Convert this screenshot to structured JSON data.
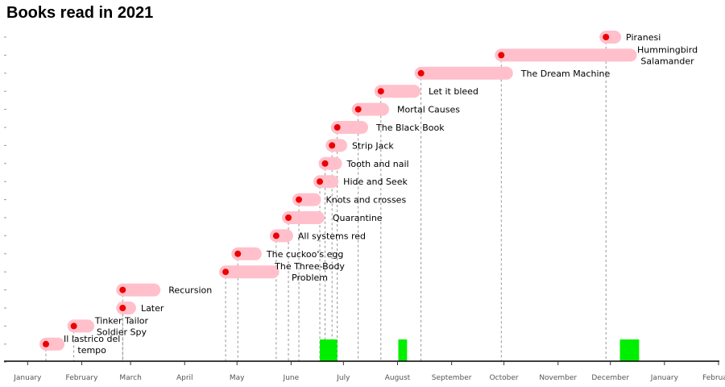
{
  "chart_data": {
    "type": "timeline",
    "title": "Books read in 2021",
    "x_axis": {
      "ticks": [
        "January",
        "February",
        "March",
        "April",
        "May",
        "June",
        "July",
        "August",
        "September",
        "October",
        "November",
        "December",
        "January",
        "February"
      ],
      "range": [
        "2021-01-01",
        "2022-02-15"
      ]
    },
    "books": [
      {
        "title": "Il lastrico del tempo",
        "label_lines": [
          "Il lastrico del",
          "tempo"
        ],
        "start": "2021-01-25",
        "end": "2021-02-01"
      },
      {
        "title": "Tinker Tailor Soldier Spy",
        "label_lines": [
          "Tinker Tailor",
          "Soldier Spy"
        ],
        "start": "2021-02-10",
        "end": "2021-02-18"
      },
      {
        "title": "Later",
        "label_lines": [
          "Later"
        ],
        "start": "2021-03-10",
        "end": "2021-03-14"
      },
      {
        "title": "Recursion",
        "label_lines": [
          "Recursion"
        ],
        "start": "2021-03-10",
        "end": "2021-03-28"
      },
      {
        "title": "The Three-Body Problem",
        "label_lines": [
          "The Three-Body",
          "Problem"
        ],
        "start": "2021-05-08",
        "end": "2021-06-04"
      },
      {
        "title": "The cuckoo's egg",
        "label_lines": [
          "The cuckoo's egg"
        ],
        "start": "2021-05-15",
        "end": "2021-05-25"
      },
      {
        "title": "All systems red",
        "label_lines": [
          "All systems red"
        ],
        "start": "2021-06-06",
        "end": "2021-06-12"
      },
      {
        "title": "Quarantine",
        "label_lines": [
          "Quarantine"
        ],
        "start": "2021-06-13",
        "end": "2021-06-30"
      },
      {
        "title": "Knots and crosses",
        "label_lines": [
          "Knots and crosses"
        ],
        "start": "2021-06-19",
        "end": "2021-06-28"
      },
      {
        "title": "Hide and Seek",
        "label_lines": [
          "Hide and Seek"
        ],
        "start": "2021-07-01",
        "end": "2021-07-08"
      },
      {
        "title": "Tooth and nail",
        "label_lines": [
          "Tooth and nail"
        ],
        "start": "2021-07-04",
        "end": "2021-07-10"
      },
      {
        "title": "Strip Jack",
        "label_lines": [
          "Strip Jack"
        ],
        "start": "2021-07-08",
        "end": "2021-07-13"
      },
      {
        "title": "The Black Book",
        "label_lines": [
          "The Black Book"
        ],
        "start": "2021-07-11",
        "end": "2021-07-25"
      },
      {
        "title": "Mortal Causes",
        "label_lines": [
          "Mortal Causes"
        ],
        "start": "2021-07-23",
        "end": "2021-08-06"
      },
      {
        "title": "Let it bleed",
        "label_lines": [
          "Let it bleed"
        ],
        "start": "2021-08-05",
        "end": "2021-08-24"
      },
      {
        "title": "The Dream Machine",
        "label_lines": [
          "The Dream Machine"
        ],
        "start": "2021-08-28",
        "end": "2021-10-16"
      },
      {
        "title": "Hummingbird Salamander",
        "label_lines": [
          "Hummingbird",
          "Salamander"
        ],
        "start": "2021-10-13",
        "end": "2021-12-26"
      },
      {
        "title": "Piranesi",
        "label_lines": [
          "Piranesi"
        ],
        "start": "2021-12-12",
        "end": "2021-12-17"
      }
    ],
    "highlights": [
      {
        "start": "2021-07-01",
        "end": "2021-07-11"
      },
      {
        "start": "2021-08-15",
        "end": "2021-08-20"
      },
      {
        "start": "2021-12-20",
        "end": "2021-12-31"
      }
    ],
    "colors": {
      "bar": "#ffc0cb",
      "dot": "#ee0000",
      "highlight": "#00ee00",
      "guide": "#888888",
      "axis": "#000000"
    }
  }
}
